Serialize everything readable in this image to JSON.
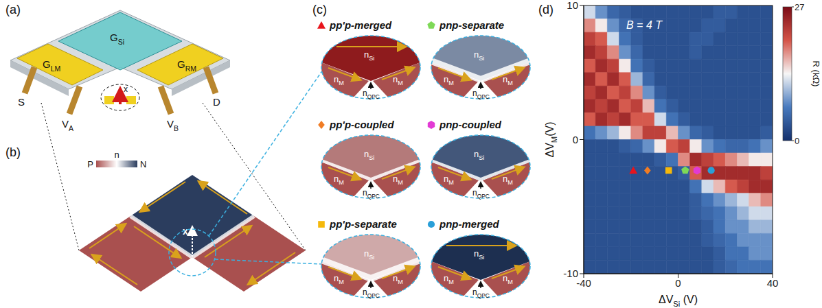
{
  "figure": {
    "a": {
      "label": "(a)",
      "gates": [
        [
          "G",
          "LM"
        ],
        [
          "G",
          "Si"
        ],
        [
          "G",
          "RM"
        ]
      ],
      "contacts": [
        "S",
        [
          "V",
          "A"
        ],
        [
          "V",
          "B"
        ],
        "D"
      ],
      "inset": "x"
    },
    "b": {
      "label": "(b)",
      "colorbar": {
        "low": "P",
        "title": "n",
        "high": "N"
      },
      "axis": "x"
    },
    "c": {
      "label": "(c)",
      "states": [
        "pp'p-merged",
        "pp'p-coupled",
        "pp'p-separate",
        "pnp-separate",
        "pnp-coupled",
        "pnp-merged"
      ],
      "regions": {
        "top": [
          "n",
          "Si"
        ],
        "side": [
          "n",
          "M"
        ],
        "qpc": [
          "n",
          "QPC"
        ]
      }
    }
  },
  "chart_data": {
    "type": "heatmap",
    "panel_label": "(d)",
    "xlabel": [
      "ΔV",
      "Si",
      " (V)"
    ],
    "ylabel": [
      "ΔV",
      "M",
      "(V)"
    ],
    "annotations": [
      "B = 4 T"
    ],
    "xlim": [
      -40,
      40
    ],
    "ylim": [
      -10,
      10
    ],
    "xticks": [
      -40,
      0,
      40
    ],
    "yticks": [
      -10,
      0,
      10
    ],
    "x_edges": [
      -40,
      -35,
      -30,
      -25,
      -20,
      -15,
      -10,
      -5,
      0,
      5,
      10,
      15,
      20,
      25,
      30,
      35,
      40
    ],
    "y_edges": [
      10,
      9,
      8,
      7,
      6,
      5,
      4,
      3,
      2,
      1,
      0,
      -1,
      -2,
      -3,
      -4,
      -5,
      -6,
      -7,
      -8,
      -9,
      -10
    ],
    "cells": [
      [
        12,
        8,
        5,
        4,
        3,
        3,
        3,
        3,
        3,
        3,
        3,
        4,
        4,
        3,
        3,
        3
      ],
      [
        18,
        14,
        8,
        5,
        4,
        3,
        3,
        3,
        3,
        3,
        4,
        4,
        3,
        3,
        3,
        3
      ],
      [
        22,
        20,
        12,
        6,
        4,
        3,
        3,
        3,
        3,
        4,
        4,
        3,
        3,
        3,
        3,
        3
      ],
      [
        24,
        22,
        18,
        8,
        5,
        3,
        3,
        3,
        3,
        4,
        3,
        3,
        3,
        3,
        3,
        3
      ],
      [
        20,
        24,
        22,
        14,
        6,
        4,
        3,
        3,
        3,
        3,
        3,
        3,
        3,
        3,
        3,
        3
      ],
      [
        24,
        20,
        24,
        20,
        10,
        5,
        3,
        3,
        3,
        3,
        3,
        3,
        3,
        3,
        3,
        3
      ],
      [
        22,
        24,
        20,
        22,
        18,
        8,
        4,
        3,
        3,
        3,
        3,
        3,
        3,
        3,
        3,
        3
      ],
      [
        24,
        22,
        24,
        20,
        22,
        16,
        6,
        4,
        3,
        3,
        3,
        3,
        3,
        3,
        3,
        3
      ],
      [
        20,
        24,
        22,
        24,
        20,
        20,
        12,
        6,
        4,
        3,
        3,
        3,
        3,
        3,
        3,
        3
      ],
      [
        6,
        8,
        10,
        14,
        18,
        22,
        22,
        16,
        8,
        5,
        4,
        3,
        3,
        3,
        3,
        4
      ],
      [
        3,
        3,
        3,
        4,
        5,
        8,
        14,
        20,
        22,
        14,
        8,
        6,
        5,
        5,
        6,
        8
      ],
      [
        3,
        3,
        3,
        3,
        3,
        3,
        4,
        6,
        18,
        24,
        22,
        20,
        18,
        16,
        14,
        14
      ],
      [
        3,
        3,
        3,
        3,
        3,
        3,
        3,
        3,
        4,
        20,
        24,
        24,
        24,
        24,
        24,
        22
      ],
      [
        3,
        3,
        3,
        3,
        3,
        3,
        3,
        3,
        3,
        6,
        12,
        16,
        20,
        22,
        24,
        24
      ],
      [
        3,
        3,
        3,
        3,
        3,
        3,
        3,
        3,
        3,
        4,
        6,
        8,
        10,
        12,
        16,
        18
      ],
      [
        3,
        3,
        3,
        3,
        3,
        3,
        3,
        3,
        3,
        4,
        5,
        6,
        8,
        10,
        12,
        12
      ],
      [
        3,
        3,
        3,
        3,
        3,
        3,
        3,
        3,
        3,
        3,
        4,
        6,
        8,
        8,
        10,
        10
      ],
      [
        3,
        3,
        3,
        3,
        3,
        3,
        3,
        3,
        3,
        3,
        4,
        5,
        6,
        8,
        8,
        8
      ],
      [
        3,
        3,
        3,
        3,
        3,
        3,
        3,
        3,
        3,
        3,
        3,
        4,
        6,
        6,
        8,
        8
      ],
      [
        3,
        3,
        3,
        3,
        3,
        3,
        3,
        3,
        3,
        3,
        3,
        4,
        5,
        6,
        6,
        6
      ]
    ],
    "colorbar": {
      "label": "R (kΩ)",
      "range": [
        0,
        27
      ],
      "ticks": [
        0,
        27
      ]
    },
    "series": [
      {
        "type": "scatter",
        "marker": "triangle",
        "color": "#e8141c",
        "x": [
          -19
        ],
        "values": [
          -2.3
        ]
      },
      {
        "type": "scatter",
        "marker": "diamond",
        "color": "#f07c24",
        "x": [
          -13
        ],
        "values": [
          -2.3
        ]
      },
      {
        "type": "scatter",
        "marker": "square",
        "color": "#f5b80a",
        "x": [
          -4
        ],
        "values": [
          -2.3
        ]
      },
      {
        "type": "scatter",
        "marker": "pentagon",
        "color": "#7ed957",
        "x": [
          3
        ],
        "values": [
          -2.3
        ]
      },
      {
        "type": "scatter",
        "marker": "hexagon",
        "color": "#e23ad4",
        "x": [
          8
        ],
        "values": [
          -2.3
        ]
      },
      {
        "type": "scatter",
        "marker": "circle",
        "color": "#2a9fd8",
        "x": [
          14
        ],
        "values": [
          -2.3
        ]
      }
    ]
  }
}
